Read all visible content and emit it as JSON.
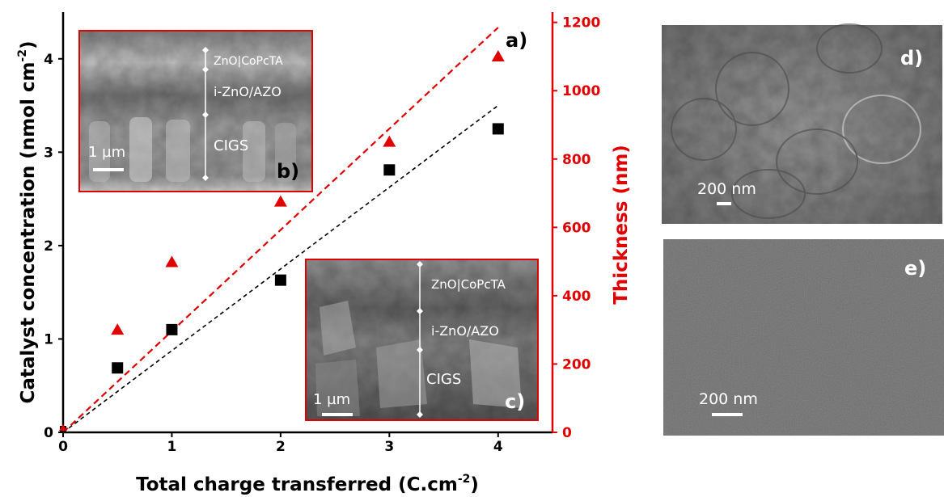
{
  "chart_data": {
    "type": "scatter",
    "xlabel": "Total charge transferred (C.cm",
    "xlabel_sup": "-2",
    "xlabel_end": ")",
    "ylabel_left": "Catalyst concentration (nmol cm",
    "ylabel_left_sup": "-2",
    "ylabel_left_end": ")",
    "ylabel_right": "Thickness (nm)",
    "xlim": [
      0,
      4.5
    ],
    "ylim_left": [
      0,
      4.5
    ],
    "ylim_right": [
      0,
      1230
    ],
    "x_ticks": [
      "0",
      "1",
      "2",
      "3",
      "4"
    ],
    "y_left_ticks": [
      "0",
      "1",
      "2",
      "3",
      "4"
    ],
    "y_right_ticks": [
      "0",
      "200",
      "400",
      "600",
      "800",
      "1000",
      "1200"
    ],
    "colors": {
      "left": "#000000",
      "right": "#e00000"
    },
    "series": [
      {
        "axis": "left",
        "marker": "square",
        "color": "#000000",
        "x": [
          0.5,
          1,
          2,
          3,
          4
        ],
        "y": [
          0.69,
          1.1,
          1.63,
          2.81,
          3.25
        ]
      },
      {
        "axis": "right",
        "marker": "triangle",
        "color": "#e00000",
        "x": [
          0.5,
          1,
          2,
          3,
          4
        ],
        "y": [
          300,
          498,
          675,
          850,
          1100
        ]
      }
    ],
    "fit_lines": [
      {
        "axis": "left",
        "color": "#000000",
        "x": [
          0,
          4
        ],
        "y": [
          0,
          3.5
        ]
      },
      {
        "axis": "right",
        "color": "#e00000",
        "x": [
          0,
          4
        ],
        "y": [
          0,
          1185
        ]
      }
    ],
    "panel_label": "a)"
  },
  "inset_b": {
    "label": "b)",
    "layers": [
      "ZnO|CoPcTA",
      "i-ZnO/AZO",
      "CIGS"
    ],
    "scale": "1 µm"
  },
  "inset_c": {
    "label": "c)",
    "layers": [
      "ZnO|CoPcTA",
      "i-ZnO/AZO",
      "CIGS"
    ],
    "scale": "1 µm"
  },
  "panel_d": {
    "label": "d)",
    "scale": "200 nm"
  },
  "panel_e": {
    "label": "e)",
    "scale": "200 nm"
  }
}
